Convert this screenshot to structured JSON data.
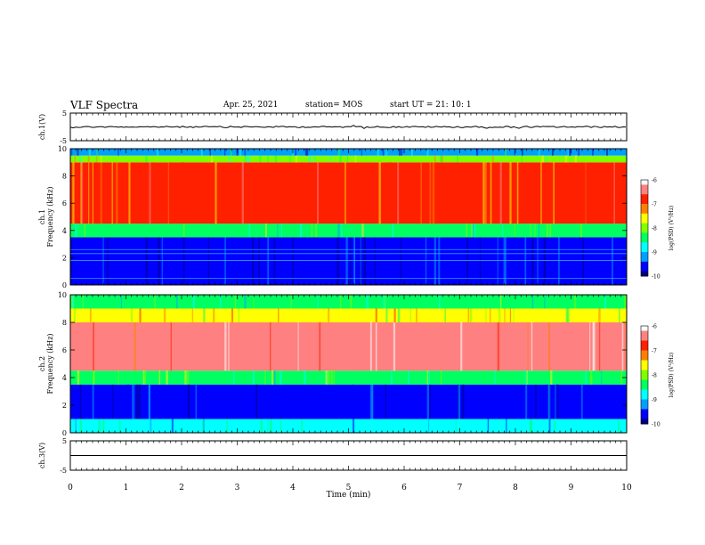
{
  "header": {
    "title": "VLF Spectra",
    "date": "Apr. 25, 2021",
    "station": "station= MOS",
    "start": "start  UT =   21: 10: 1"
  },
  "chart_data": [
    {
      "type": "line",
      "name": "channel-1-waveform",
      "ylabel": "ch.1(V)",
      "ylim": [
        -5,
        5
      ],
      "yticks": [
        "5",
        "-5"
      ],
      "xlim": [
        0,
        10
      ],
      "level": 0,
      "note_shape": "flat trace with small spikes"
    },
    {
      "type": "heatmap",
      "name": "channel-1-spectrogram",
      "ylabel": "ch.1\nFrequency (kHz)",
      "ylim": [
        0,
        10
      ],
      "yticks": [
        "0",
        "2",
        "4",
        "6",
        "8",
        "10"
      ],
      "xlim": [
        0,
        10
      ],
      "bands_khz": [
        {
          "from": 0,
          "to": 3.5,
          "level": -9.6
        },
        {
          "from": 3.5,
          "to": 4.5,
          "level": -8.5
        },
        {
          "from": 4.5,
          "to": 9.0,
          "level": -7.0
        },
        {
          "from": 9.0,
          "to": 9.5,
          "level": -8.0
        },
        {
          "from": 9.5,
          "to": 10,
          "level": -9.3
        }
      ],
      "colorbar": {
        "label": "log(PSD) (V²/Hz)",
        "range": [
          -10,
          -6
        ],
        "ticks": [
          "-6",
          "-7",
          "-8",
          "-9",
          "-10"
        ]
      }
    },
    {
      "type": "heatmap",
      "name": "channel-2-spectrogram",
      "ylabel": "ch.2\nFrequency (kHz)",
      "ylim": [
        0,
        10
      ],
      "yticks": [
        "0",
        "2",
        "4",
        "6",
        "8",
        "10"
      ],
      "xlim": [
        0,
        10
      ],
      "bands_khz": [
        {
          "from": 0,
          "to": 1.0,
          "level": -8.8
        },
        {
          "from": 1.0,
          "to": 3.5,
          "level": -9.5
        },
        {
          "from": 3.5,
          "to": 4.5,
          "level": -8.3
        },
        {
          "from": 4.5,
          "to": 8.0,
          "level": -6.3
        },
        {
          "from": 8.0,
          "to": 9.0,
          "level": -7.6
        },
        {
          "from": 9.0,
          "to": 10,
          "level": -8.5
        }
      ],
      "colorbar": {
        "label": "log(PSD) (V²/Hz)",
        "range": [
          -10,
          -6
        ],
        "ticks": [
          "-6",
          "-7",
          "-8",
          "-9",
          "-10"
        ]
      }
    },
    {
      "type": "line",
      "name": "channel-3-waveform",
      "ylabel": "ch.3(V)",
      "ylim": [
        -5,
        5
      ],
      "yticks": [
        "5",
        "-5"
      ],
      "xlim": [
        0,
        10
      ],
      "level": 0
    }
  ],
  "xaxis": {
    "label": "Time  (min)",
    "ticks": [
      "0",
      "1",
      "2",
      "3",
      "4",
      "5",
      "6",
      "7",
      "8",
      "9",
      "10"
    ],
    "range": [
      0,
      10
    ]
  },
  "colors": {
    "colormap": [
      "#000080",
      "#0000ff",
      "#00a0ff",
      "#00ffff",
      "#00ff60",
      "#80ff00",
      "#ffff00",
      "#ff8000",
      "#ff2000",
      "#ff8080",
      "#ffffff"
    ]
  }
}
